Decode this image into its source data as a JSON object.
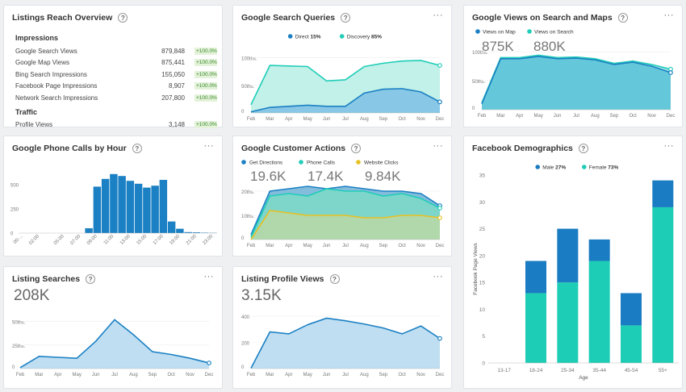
{
  "reach": {
    "title": "Listings Reach Overview",
    "sections": [
      {
        "heading": "Impressions",
        "rows": [
          {
            "label": "Google Search Views",
            "value": "879,848",
            "change": "+100.0%"
          },
          {
            "label": "Google Map Views",
            "value": "875,441",
            "change": "+100.0%"
          },
          {
            "label": "Bing Search Impressions",
            "value": "155,050",
            "change": "+100.0%"
          },
          {
            "label": "Facebook Page Impressions",
            "value": "8,907",
            "change": "+100.0%"
          },
          {
            "label": "Network Search Impressions",
            "value": "207,800",
            "change": "+100.0%"
          }
        ]
      },
      {
        "heading": "Traffic",
        "rows": [
          {
            "label": "Profile Views",
            "value": "3,148",
            "change": "+100.0%"
          }
        ]
      }
    ]
  },
  "chart_data": [
    {
      "id": "search_queries",
      "type": "area",
      "title": "Google Search Queries",
      "categories": [
        "Feb",
        "Mar",
        "Apr",
        "May",
        "Jun",
        "Jul",
        "Aug",
        "Sep",
        "Oct",
        "Nov",
        "Dec"
      ],
      "ylim": [
        0,
        130
      ],
      "yticks": [
        {
          "v": 100,
          "label": "100ths."
        },
        {
          "v": 50,
          "label": "50ths."
        },
        {
          "v": 0,
          "label": "0"
        }
      ],
      "series": [
        {
          "name": "Direct",
          "pct": "15%",
          "color": "#1b80c4",
          "fill": "#7ec0e4",
          "values": [
            2,
            10,
            12,
            14,
            12,
            12,
            36,
            43,
            44,
            38,
            20
          ]
        },
        {
          "name": "Discovery",
          "pct": "85%",
          "color": "#20cdb8",
          "fill": "#b6eee4",
          "values": [
            15,
            86,
            85,
            84,
            58,
            60,
            84,
            90,
            94,
            95,
            86
          ]
        }
      ]
    },
    {
      "id": "views_search_maps",
      "type": "area",
      "title": "Google Views on Search and Maps",
      "categories": [
        "Feb",
        "Mar",
        "Apr",
        "May",
        "Jun",
        "Jul",
        "Aug",
        "Sep",
        "Oct",
        "Nov",
        "Dec"
      ],
      "ylim": [
        0,
        110
      ],
      "yticks": [
        {
          "v": 100,
          "label": "100ths."
        },
        {
          "v": 50,
          "label": "50ths."
        },
        {
          "v": 0,
          "label": "0"
        }
      ],
      "series": [
        {
          "name": "Views on Map",
          "total": "875K",
          "color": "#1b80c4",
          "fill": "#5cc3d8",
          "values": [
            10,
            88,
            88,
            92,
            88,
            89,
            86,
            78,
            82,
            75,
            64
          ]
        },
        {
          "name": "Views on Search",
          "total": "880K",
          "color": "#20cdb8",
          "fill": "#8bdbe0",
          "values": [
            12,
            90,
            90,
            94,
            90,
            91,
            88,
            80,
            84,
            78,
            70
          ]
        }
      ]
    },
    {
      "id": "phone_calls_hour",
      "type": "bar",
      "title": "Google Phone Calls by Hour",
      "categories": [
        "00:00",
        "01:00",
        "02:00",
        "03:00",
        "04:00",
        "05:00",
        "06:00",
        "07:00",
        "08:00",
        "09:00",
        "10:00",
        "11:00",
        "12:00",
        "13:00",
        "14:00",
        "15:00",
        "16:00",
        "17:00",
        "18:00",
        "19:00",
        "20:00",
        "21:00",
        "22:00",
        "23:00"
      ],
      "tick_labels": [
        "00:...",
        "02:00",
        "05:00",
        "07:00",
        "09:00",
        "11:00",
        "13:00",
        "15:00",
        "17:00",
        "19:00",
        "21:00",
        "23:00"
      ],
      "values": [
        0,
        0,
        0,
        0,
        0,
        0,
        0,
        0,
        50,
        480,
        560,
        610,
        590,
        540,
        510,
        470,
        490,
        550,
        120,
        45,
        10,
        8,
        5,
        3
      ],
      "color": "#1b80c4",
      "ylim": [
        0,
        750
      ],
      "yticks": [
        {
          "v": 500,
          "label": "500"
        },
        {
          "v": 250,
          "label": "250"
        },
        {
          "v": 0,
          "label": "0"
        }
      ]
    },
    {
      "id": "customer_actions",
      "type": "area",
      "title": "Google Customer Actions",
      "categories": [
        "Feb",
        "Mar",
        "Apr",
        "May",
        "Jun",
        "Jul",
        "Aug",
        "Sep",
        "Oct",
        "Nov",
        "Dec"
      ],
      "ylim": [
        0,
        24
      ],
      "yticks": [
        {
          "v": 20,
          "label": "20ths."
        },
        {
          "v": 10,
          "label": "10ths."
        },
        {
          "v": 0,
          "label": "0"
        }
      ],
      "series": [
        {
          "name": "Get Directions",
          "total": "19.6K",
          "color": "#1b80c4",
          "fill": "#6fb0d6",
          "values": [
            2,
            20,
            21,
            22,
            21,
            22,
            21,
            20,
            20,
            19,
            14
          ]
        },
        {
          "name": "Phone Calls",
          "total": "17.4K",
          "color": "#20cdb8",
          "fill": "#7ddac8",
          "values": [
            1,
            18,
            19,
            18,
            21,
            20,
            20,
            18,
            19,
            17,
            13
          ]
        },
        {
          "name": "Website Clicks",
          "total": "9.84K",
          "color": "#e8c020",
          "fill": "#b8d8a6",
          "values": [
            0,
            12,
            11,
            10,
            10,
            10,
            9,
            9,
            10,
            10,
            9
          ]
        }
      ]
    },
    {
      "id": "demographics",
      "type": "bar",
      "title": "Facebook Demographics",
      "categories": [
        "13-17",
        "18-24",
        "25-34",
        "35-44",
        "45-54",
        "55+"
      ],
      "xlabel": "Age",
      "ylabel": "Facebook Page Views",
      "stacked": true,
      "ylim": [
        0,
        35
      ],
      "yticks": [
        0,
        5,
        10,
        15,
        20,
        25,
        30,
        35
      ],
      "series": [
        {
          "name": "Female",
          "pct": "73%",
          "color": "#1ecdb5",
          "values": [
            0,
            13,
            15,
            19,
            7,
            29
          ]
        },
        {
          "name": "Male",
          "pct": "27%",
          "color": "#1a7cc2",
          "values": [
            0,
            6,
            10,
            4,
            6,
            5
          ]
        }
      ]
    },
    {
      "id": "listing_searches",
      "type": "area",
      "title": "Listing Searches",
      "total": "208K",
      "categories": [
        "Feb",
        "Mar",
        "Apr",
        "May",
        "Jun",
        "Jul",
        "Aug",
        "Sep",
        "Oct",
        "Nov",
        "Dec"
      ],
      "ylim": [
        0,
        60
      ],
      "yticks": [
        {
          "v": 50,
          "label": "50ths."
        },
        {
          "v": 25,
          "label": "25ths."
        },
        {
          "v": 0,
          "label": "0"
        }
      ],
      "series": [
        {
          "name": "Listing Searches",
          "color": "#1b80c4",
          "fill": "#b8daf0",
          "values": [
            1,
            13,
            12,
            11,
            29,
            52,
            36,
            18,
            15,
            11,
            6
          ]
        }
      ]
    },
    {
      "id": "profile_views",
      "type": "area",
      "title": "Listing Profile Views",
      "total": "3.15K",
      "categories": [
        "Feb",
        "Mar",
        "Apr",
        "May",
        "Jun",
        "Jul",
        "Aug",
        "Sep",
        "Oct",
        "Nov",
        "Dec"
      ],
      "ylim": [
        0,
        480
      ],
      "yticks": [
        {
          "v": 400,
          "label": "400"
        },
        {
          "v": 200,
          "label": "200"
        },
        {
          "v": 0,
          "label": "0"
        }
      ],
      "series": [
        {
          "name": "Listing Profile Views",
          "color": "#1b80c4",
          "fill": "#b8daf0",
          "values": [
            3,
            280,
            265,
            335,
            385,
            365,
            340,
            310,
            265,
            325,
            230
          ]
        }
      ]
    }
  ]
}
